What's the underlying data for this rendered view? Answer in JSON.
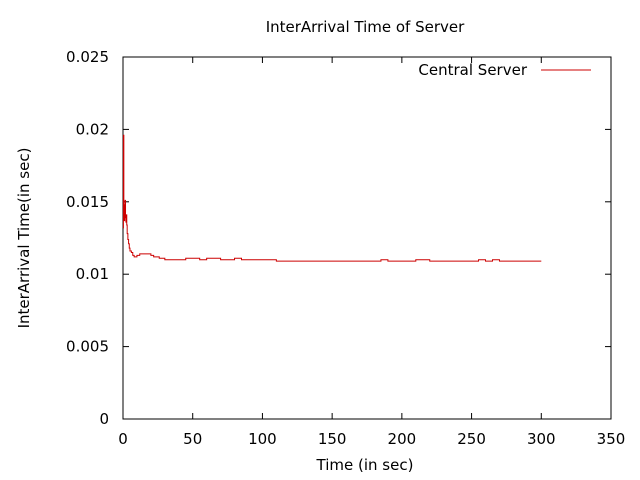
{
  "chart_data": {
    "type": "line",
    "title": "InterArrival Time of Server",
    "xlabel": "Time (in sec)",
    "ylabel": "InterArrival Time(in sec)",
    "xlim": [
      0,
      350
    ],
    "ylim": [
      0,
      0.025
    ],
    "xticks": [
      0,
      50,
      100,
      150,
      200,
      250,
      300,
      350
    ],
    "yticks": [
      0,
      0.005,
      0.01,
      0.015,
      0.02,
      0.025
    ],
    "xtick_labels": [
      "0",
      "50",
      "100",
      "150",
      "200",
      "250",
      "300",
      "350"
    ],
    "ytick_labels": [
      "0",
      "0.005",
      "0.01",
      "0.015",
      "0.02",
      "0.025"
    ],
    "grid": false,
    "legend_position": "top-right",
    "series": [
      {
        "name": "Central Server",
        "color": "#cc0000",
        "x": [
          0,
          0.3,
          0.6,
          0.9,
          1.2,
          1.5,
          1.8,
          2.1,
          2.4,
          2.7,
          3.0,
          3.5,
          4.0,
          4.5,
          5.0,
          6.0,
          7.0,
          8.0,
          9.0,
          10,
          12,
          14,
          16,
          18,
          20,
          22,
          24,
          26,
          28,
          30,
          32,
          34,
          36,
          38,
          40,
          45,
          50,
          55,
          60,
          65,
          70,
          75,
          80,
          85,
          90,
          95,
          100,
          110,
          120,
          130,
          140,
          150,
          160,
          170,
          180,
          185,
          190,
          200,
          210,
          220,
          230,
          240,
          250,
          255,
          260,
          265,
          270,
          280,
          290,
          300
        ],
        "y": [
          0.0132,
          0.0196,
          0.0148,
          0.0137,
          0.0142,
          0.0151,
          0.0139,
          0.0136,
          0.0141,
          0.0134,
          0.0128,
          0.0124,
          0.0121,
          0.0118,
          0.0116,
          0.0115,
          0.0113,
          0.0112,
          0.0112,
          0.0113,
          0.0114,
          0.0114,
          0.0114,
          0.0114,
          0.0113,
          0.0112,
          0.0112,
          0.0111,
          0.0111,
          0.011,
          0.011,
          0.011,
          0.011,
          0.011,
          0.011,
          0.0111,
          0.0111,
          0.011,
          0.0111,
          0.0111,
          0.011,
          0.011,
          0.0111,
          0.011,
          0.011,
          0.011,
          0.011,
          0.0109,
          0.0109,
          0.0109,
          0.0109,
          0.0109,
          0.0109,
          0.0109,
          0.0109,
          0.011,
          0.0109,
          0.0109,
          0.011,
          0.0109,
          0.0109,
          0.0109,
          0.0109,
          0.011,
          0.0109,
          0.011,
          0.0109,
          0.0109,
          0.0109,
          0.0109
        ]
      }
    ]
  }
}
